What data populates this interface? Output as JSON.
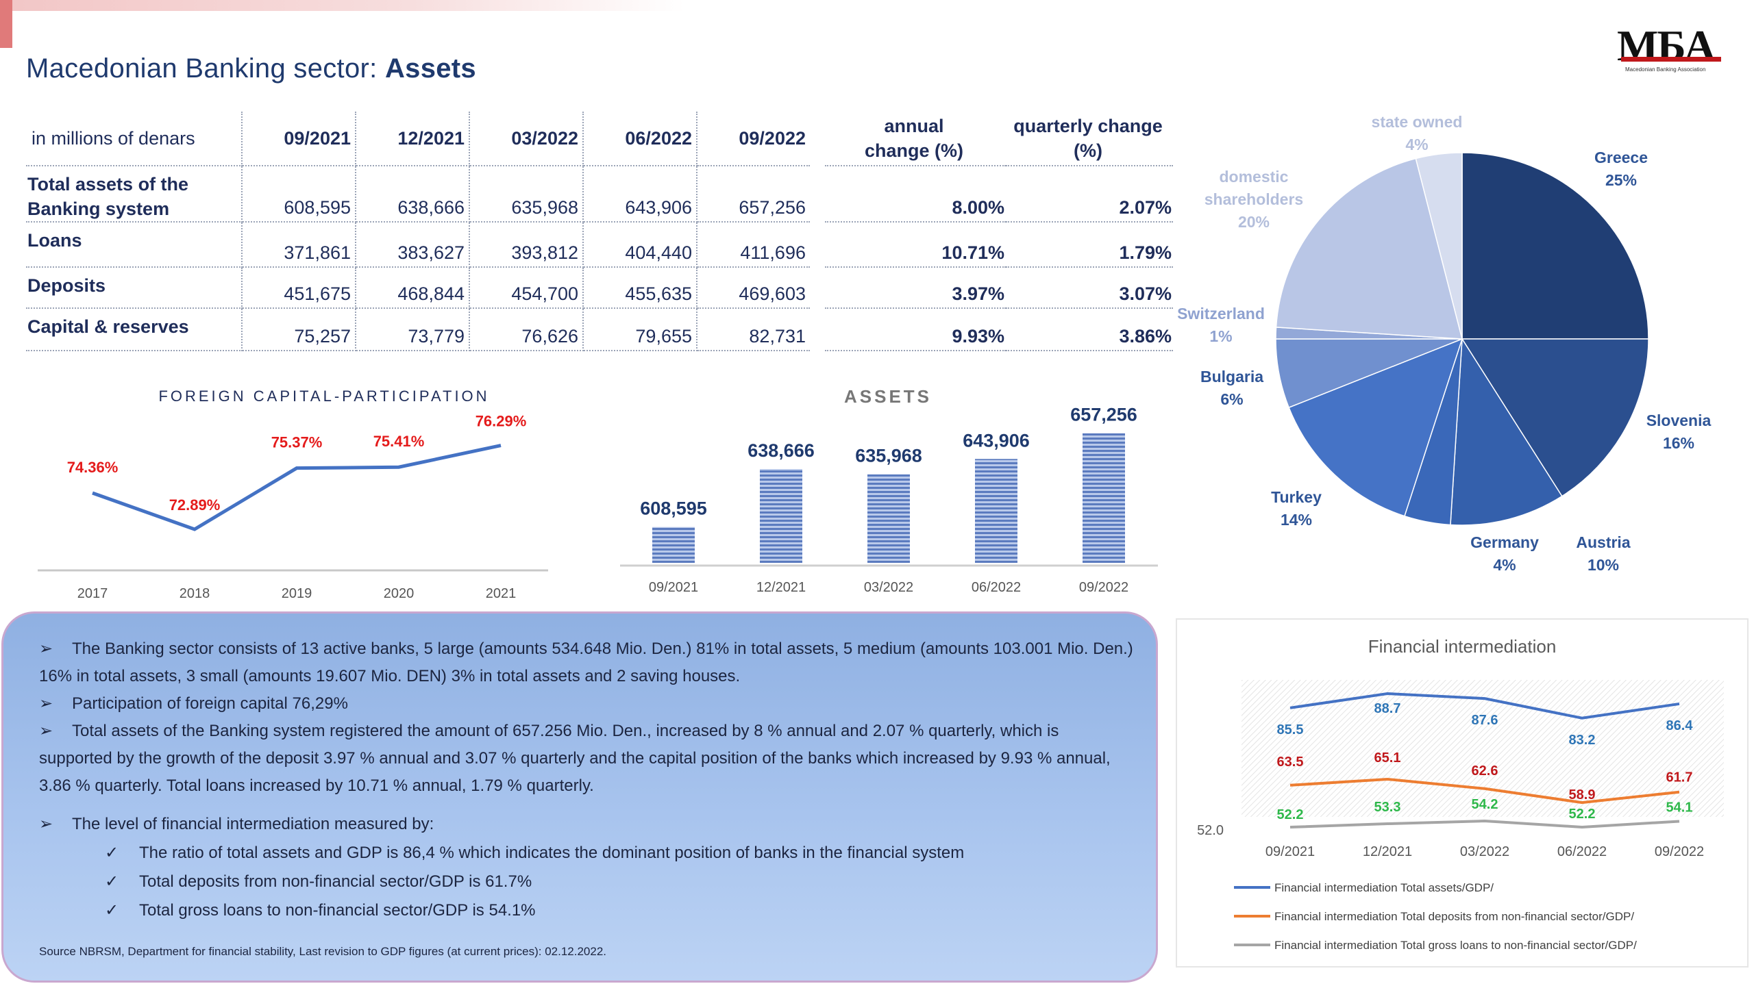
{
  "header": {
    "title_prefix": "Macedonian Banking sector: ",
    "title_bold": "Assets",
    "logo_text": "МБА",
    "logo_subtitle": "Macedonian Banking Association"
  },
  "table": {
    "unit_label": "in millions of denars",
    "periods": [
      "09/2021",
      "12/2021",
      "03/2022",
      "06/2022",
      "09/2022"
    ],
    "annual_change_header": [
      "annual",
      "change (%)"
    ],
    "quarterly_change_header": [
      "quarterly change",
      "(%)"
    ],
    "rows": [
      {
        "label": [
          "Total assets of the",
          "Banking system"
        ],
        "values": [
          "608,595",
          "638,666",
          "635,968",
          "643,906",
          "657,256"
        ],
        "annual": "8.00%",
        "quarterly": "2.07%"
      },
      {
        "label": [
          "Loans"
        ],
        "values": [
          "371,861",
          "383,627",
          "393,812",
          "404,440",
          "411,696"
        ],
        "annual": "10.71%",
        "quarterly": "1.79%"
      },
      {
        "label": [
          "Deposits"
        ],
        "values": [
          "451,675",
          "468,844",
          "454,700",
          "455,635",
          "469,603"
        ],
        "annual": "3.97%",
        "quarterly": "3.07%"
      },
      {
        "label": [
          "Capital & reserves"
        ],
        "values": [
          "75,257",
          "73,779",
          "76,626",
          "79,655",
          "82,731"
        ],
        "annual": "9.93%",
        "quarterly": "3.86%"
      }
    ]
  },
  "colors": {
    "title_blue": "#1f3a6e",
    "line_blue": "#4472c4",
    "label_red": "#e41b1b",
    "total_assets_line": "#4472c4",
    "deposits_line": "#ed7d31",
    "loans_line": "#a5a5a5",
    "label_green": "#2eb84a",
    "label_dark_red": "#c0181b",
    "label_blue": "#2e75b6"
  },
  "chart_data": [
    {
      "type": "line",
      "title": "FOREIGN CAPITAL-PARTICIPATION",
      "x": [
        "2017",
        "2018",
        "2019",
        "2020",
        "2021"
      ],
      "values": [
        74.36,
        72.89,
        75.37,
        75.41,
        76.29
      ],
      "data_labels": [
        "74.36%",
        "72.89%",
        "75.37%",
        "75.41%",
        "76.29%"
      ],
      "ylim": [
        72,
        77
      ]
    },
    {
      "type": "bar",
      "title": "ASSETS",
      "categories": [
        "09/2021",
        "12/2021",
        "03/2022",
        "06/2022",
        "09/2022"
      ],
      "values": [
        608595,
        638666,
        635968,
        643906,
        657256
      ],
      "data_labels": [
        "608,595",
        "638,666",
        "635,968",
        "643,906",
        "657,256"
      ],
      "ylim": [
        590000,
        660000
      ]
    },
    {
      "type": "pie",
      "slices": [
        {
          "label": "Greece",
          "value": 25,
          "pct": "25%",
          "color": "#203e74"
        },
        {
          "label": "Slovenia",
          "value": 16,
          "pct": "16%",
          "color": "#2b4f8f"
        },
        {
          "label": "Austria",
          "value": 10,
          "pct": "10%",
          "color": "#3460ac"
        },
        {
          "label": "Germany",
          "value": 4,
          "pct": "4%",
          "color": "#3a68b9"
        },
        {
          "label": "Turkey",
          "value": 14,
          "pct": "14%",
          "color": "#4573c6"
        },
        {
          "label": "Bulgaria",
          "value": 6,
          "pct": "6%",
          "color": "#7090cf"
        },
        {
          "label": "Switzerland",
          "value": 1,
          "pct": "1%",
          "color": "#93a8d8"
        },
        {
          "label": "domestic shareholders",
          "label_lines": [
            "domestic",
            "shareholders"
          ],
          "value": 20,
          "pct": "20%",
          "color": "#b9c6e6"
        },
        {
          "label": "state owned",
          "value": 4,
          "pct": "4%",
          "color": "#d6ddef"
        }
      ]
    },
    {
      "type": "line",
      "title": "Financial intermediation",
      "x": [
        "09/2021",
        "12/2021",
        "03/2022",
        "06/2022",
        "09/2022"
      ],
      "y_tick": "52.0",
      "series": [
        {
          "name": "Financial intermediation Total assets/GDP/",
          "values": [
            85.5,
            88.7,
            87.6,
            83.2,
            86.4
          ],
          "labels": [
            "85.5",
            "88.7",
            "87.6",
            "83.2",
            "86.4"
          ]
        },
        {
          "name": "Financial intermediation Total deposits from non-financial sector/GDP/",
          "values": [
            63.5,
            65.1,
            62.6,
            58.9,
            61.7
          ],
          "labels": [
            "63.5",
            "65.1",
            "62.6",
            "58.9",
            "61.7"
          ]
        },
        {
          "name": "Financial intermediation Total gross loans to non-financial sector/GDP/",
          "values": [
            52.2,
            53.3,
            54.2,
            52.2,
            54.1
          ],
          "labels": [
            "52.2",
            "53.3",
            "54.2",
            "52.2",
            "54.1"
          ]
        }
      ]
    }
  ],
  "notes": {
    "bullet_symbol": "➢",
    "check_symbol": "✓",
    "p1a": "The Banking sector consists of 13 active banks, 5 large (amounts 534.648 Mio. Den.) 81% in total assets, 5 medium (amounts 103.001 Mio. Den.)",
    "p1b": "16% in total assets, 3 small (amounts 19.607 Mio. DEN) 3% in total assets and 2 saving houses.",
    "p2": "Participation of foreign capital 76,29%",
    "p3a": "Total assets of the Banking system registered the amount of 657.256 Mio. Den., increased by 8 % annual and 2.07 % quarterly, which is",
    "p3b": "supported by the growth of the deposit 3.97 % annual and 3.07 % quarterly and the capital position of the banks which increased by 9.93 % annual,",
    "p3c": "3.86 % quarterly. Total loans increased by 10.71 % annual, 1.79 % quarterly.",
    "p4": "The level of financial intermediation  measured by:",
    "c1": "The ratio of total assets and  GDP is 86,4 % which indicates the dominant position of banks in the  financial system",
    "c2": "Total deposits from non-financial sector/GDP is 61.7%",
    "c3": "Total gross loans to non-financial sector/GDP  is 54.1%",
    "source": "Source NBRSM, Department for financial stability, Last revision to GDP figures (at current prices): 02.12.2022."
  }
}
